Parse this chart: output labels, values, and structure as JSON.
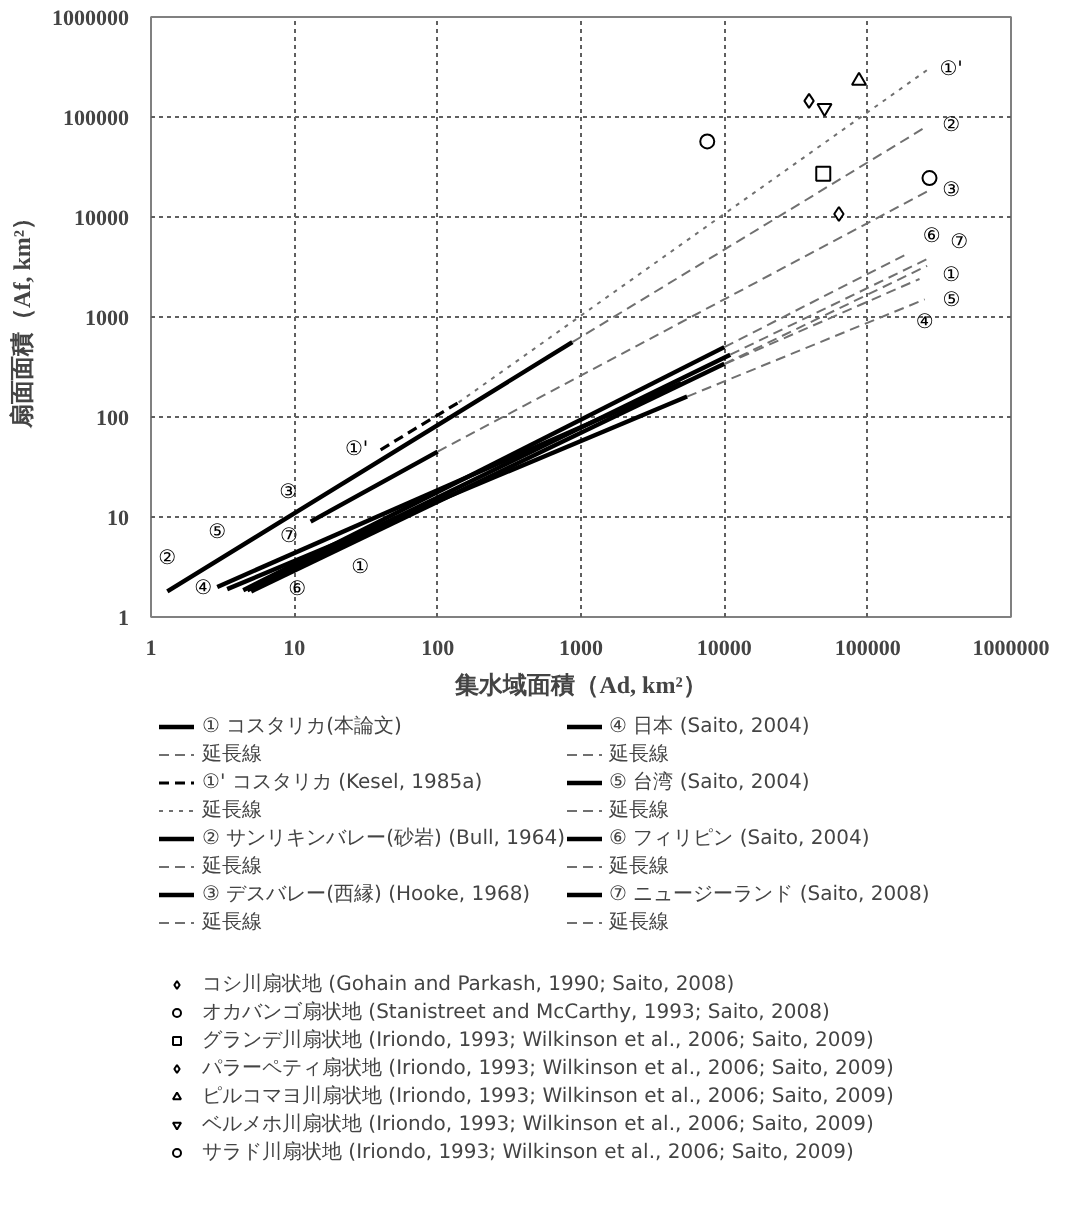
{
  "chart_data": {
    "type": "line",
    "xlabel": "集水域面積（Ad, km²）",
    "ylabel": "扇面面積（Af, km²）",
    "xlim": [
      1,
      1000000
    ],
    "ylim": [
      1,
      1000000
    ],
    "xticks": [
      1,
      10,
      100,
      1000,
      10000,
      100000,
      1000000
    ],
    "yticks": [
      1,
      10,
      100,
      1000,
      10000,
      100000,
      1000000
    ],
    "log": "xy",
    "grid": true,
    "legend": "bottom",
    "series": [
      {
        "name": "① コスタリカ(本論文)",
        "color": "#000000",
        "line_style": "solid",
        "x": [
          4.7,
          11000
        ],
        "values": [
          1.85,
          420
        ]
      },
      {
        "name": "延長線",
        "color": "#707070",
        "line_style": "dashed",
        "x": [
          11000,
          260000
        ],
        "values": [
          420,
          3800
        ]
      },
      {
        "name": "①' コスタリカ (Kesel, 1985a)",
        "color": "#000000",
        "line_style": "dashed",
        "x": [
          40,
          140
        ],
        "values": [
          47,
          140
        ]
      },
      {
        "name": "延長線",
        "color": "#707070",
        "line_style": "dotted",
        "x": [
          140,
          260000
        ],
        "values": [
          140,
          295000
        ]
      },
      {
        "name": "② サンリキンバレー(砂岩) (Bull, 1964)",
        "color": "#000000",
        "line_style": "solid",
        "x": [
          1.3,
          870
        ],
        "values": [
          1.8,
          560
        ]
      },
      {
        "name": "延長線",
        "color": "#707070",
        "line_style": "dashed",
        "x": [
          870,
          260000
        ],
        "values": [
          560,
          81000
        ]
      },
      {
        "name": "③ デスバレー(西縁) (Hooke, 1968)",
        "color": "#000000",
        "line_style": "solid",
        "x": [
          13,
          100
        ],
        "values": [
          9,
          45
        ]
      },
      {
        "name": "延長線",
        "color": "#707070",
        "line_style": "dashed",
        "x": [
          100,
          260000
        ],
        "values": [
          45,
          18000
        ]
      },
      {
        "name": "④ 日本 (Saito, 2004)",
        "color": "#000000",
        "line_style": "solid",
        "x": [
          3.4,
          5500
        ],
        "values": [
          1.9,
          160
        ]
      },
      {
        "name": "延長線",
        "color": "#707070",
        "line_style": "dashed",
        "x": [
          5500,
          250000
        ],
        "values": [
          160,
          1500
        ]
      },
      {
        "name": "⑤ 台湾 (Saito, 2004)",
        "color": "#000000",
        "line_style": "solid",
        "x": [
          2.9,
          5000
        ],
        "values": [
          2.0,
          218
        ]
      },
      {
        "name": "延長線",
        "color": "#707070",
        "line_style": "dashed",
        "x": [
          5000,
          230000
        ],
        "values": [
          218,
          2400
        ]
      },
      {
        "name": "⑥ フィリピン (Saito, 2004)",
        "color": "#000000",
        "line_style": "solid",
        "x": [
          4.4,
          10000
        ],
        "values": [
          1.85,
          500
        ]
      },
      {
        "name": "延長線",
        "color": "#707070",
        "line_style": "dashed",
        "x": [
          10000,
          190000
        ],
        "values": [
          500,
          4300
        ]
      },
      {
        "name": "⑦ ニュージーランド (Saito, 2008)",
        "color": "#000000",
        "line_style": "solid",
        "x": [
          5.0,
          10000
        ],
        "values": [
          1.8,
          340
        ]
      },
      {
        "name": "延長線",
        "color": "#707070",
        "line_style": "dashed",
        "x": [
          10000,
          260000
        ],
        "values": [
          340,
          3250
        ]
      },
      {
        "name": "コシ川扇状地 (Gohain and Parkash, 1990; Saito, 2008)",
        "type": "scatter",
        "marker": "diamond",
        "color": "#000000",
        "x": [
          63000
        ],
        "values": [
          10700
        ]
      },
      {
        "name": "オカバンゴ扇状地 (Stanistreet and McCarthy, 1993; Saito, 2008)",
        "type": "scatter",
        "marker": "circle",
        "color": "#000000",
        "x": [
          270000
        ],
        "values": [
          24500
        ]
      },
      {
        "name": "グランデ川扇状地 (Iriondo, 1993; Wilkinson et al., 2006; Saito, 2009)",
        "type": "scatter",
        "marker": "square",
        "color": "#000000",
        "x": [
          49000
        ],
        "values": [
          27000
        ]
      },
      {
        "name": "パラーペティ扇状地 (Iriondo, 1993; Wilkinson et al., 2006; Saito, 2009)",
        "type": "scatter",
        "marker": "diamond",
        "color": "#000000",
        "x": [
          39000
        ],
        "values": [
          145000
        ]
      },
      {
        "name": "ピルコマヨ川扇状地 (Iriondo, 1993; Wilkinson et al., 2006; Saito, 2009)",
        "type": "scatter",
        "marker": "triangle",
        "color": "#000000",
        "x": [
          87000
        ],
        "values": [
          230000
        ]
      },
      {
        "name": "ベルメホ川扇状地 (Iriondo, 1993; Wilkinson et al., 2006; Saito, 2009)",
        "type": "scatter",
        "color": "#000000",
        "x": [
          50000
        ],
        "values": [
          123000
        ]
      },
      {
        "name": "サラド川扇状地 (Iriondo, 1993; Wilkinson et al., 2006; Saito, 2009)",
        "type": "scatter",
        "marker": "circle",
        "color": "#000000",
        "x": [
          7600
        ],
        "values": [
          57000
        ]
      }
    ],
    "annotations": [
      {
        "text": "①'",
        "x": 260000,
        "y": 295000
      },
      {
        "text": "②",
        "x": 260000,
        "y": 81000
      },
      {
        "text": "③",
        "x": 260000,
        "y": 18000
      },
      {
        "text": "⑥",
        "x": 190000,
        "y": 4300
      },
      {
        "text": "①",
        "x": 260000,
        "y": 3800
      },
      {
        "text": "⑦",
        "x": 260000,
        "y": 3250
      },
      {
        "text": "⑤",
        "x": 230000,
        "y": 2400
      },
      {
        "text": "④",
        "x": 250000,
        "y": 1500
      },
      {
        "text": "②",
        "x": 1.3,
        "y": 1.8
      },
      {
        "text": "⑤",
        "x": 2.9,
        "y": 2.0
      },
      {
        "text": "④",
        "x": 3.4,
        "y": 1.9
      },
      {
        "text": "⑥",
        "x": 4.4,
        "y": 1.85
      },
      {
        "text": "⑦",
        "x": 5.0,
        "y": 1.8
      },
      {
        "text": "③",
        "x": 13,
        "y": 9
      },
      {
        "text": "①",
        "x": 22,
        "y": 5.4
      },
      {
        "text": "①'",
        "x": 40,
        "y": 47
      }
    ]
  }
}
